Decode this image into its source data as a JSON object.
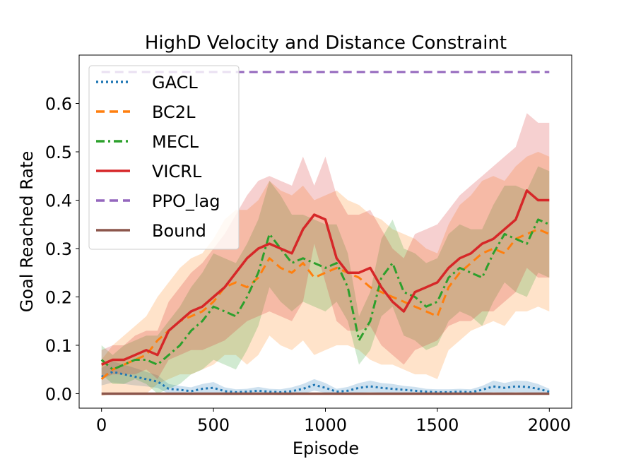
{
  "chart_data": {
    "type": "line",
    "title": "HighD Velocity and Distance Constraint",
    "xlabel": "Episode",
    "ylabel": "Goal Reached Rate",
    "xlim": [
      -100,
      2100
    ],
    "ylim": [
      -0.03,
      0.7
    ],
    "xticks": [
      0,
      500,
      1000,
      1500,
      2000
    ],
    "xtick_labels": [
      "0",
      "500",
      "1000",
      "1500",
      "2000"
    ],
    "yticks": [
      0.0,
      0.1,
      0.2,
      0.3,
      0.4,
      0.5,
      0.6
    ],
    "ytick_labels": [
      "0.0",
      "0.1",
      "0.2",
      "0.3",
      "0.4",
      "0.5",
      "0.6"
    ],
    "grid": false,
    "legend_position": "top-left",
    "series": [
      {
        "name": "GACL",
        "color": "#1f77b4",
        "style": "dotted",
        "x": [
          0,
          50,
          100,
          150,
          200,
          250,
          300,
          350,
          400,
          450,
          500,
          550,
          600,
          650,
          700,
          750,
          800,
          850,
          900,
          950,
          1000,
          1050,
          1100,
          1150,
          1200,
          1250,
          1300,
          1350,
          1400,
          1450,
          1500,
          1550,
          1600,
          1650,
          1700,
          1750,
          1800,
          1850,
          1900,
          1950,
          2000
        ],
        "y": [
          0.035,
          0.045,
          0.04,
          0.035,
          0.03,
          0.025,
          0.01,
          0.008,
          0.005,
          0.01,
          0.012,
          0.005,
          0.003,
          0.004,
          0.006,
          0.004,
          0.003,
          0.005,
          0.01,
          0.018,
          0.012,
          0.004,
          0.006,
          0.012,
          0.015,
          0.012,
          0.01,
          0.008,
          0.006,
          0.004,
          0.003,
          0.003,
          0.004,
          0.003,
          0.008,
          0.015,
          0.012,
          0.015,
          0.014,
          0.01,
          0.004
        ],
        "band": [
          0.018,
          0.022,
          0.02,
          0.018,
          0.015,
          0.013,
          0.01,
          0.008,
          0.008,
          0.01,
          0.012,
          0.008,
          0.006,
          0.006,
          0.008,
          0.006,
          0.006,
          0.008,
          0.01,
          0.012,
          0.01,
          0.006,
          0.008,
          0.01,
          0.012,
          0.01,
          0.01,
          0.008,
          0.008,
          0.006,
          0.006,
          0.006,
          0.006,
          0.006,
          0.008,
          0.012,
          0.01,
          0.012,
          0.012,
          0.01,
          0.006
        ]
      },
      {
        "name": "BC2L",
        "color": "#ff7f0e",
        "style": "dashed",
        "x": [
          0,
          50,
          100,
          150,
          200,
          250,
          300,
          350,
          400,
          450,
          500,
          550,
          600,
          650,
          700,
          750,
          800,
          850,
          900,
          950,
          1000,
          1050,
          1100,
          1150,
          1200,
          1250,
          1300,
          1350,
          1400,
          1450,
          1500,
          1550,
          1600,
          1650,
          1700,
          1750,
          1800,
          1850,
          1900,
          1950,
          2000
        ],
        "y": [
          0.03,
          0.05,
          0.06,
          0.07,
          0.08,
          0.11,
          0.13,
          0.15,
          0.16,
          0.17,
          0.19,
          0.22,
          0.23,
          0.22,
          0.24,
          0.28,
          0.26,
          0.25,
          0.27,
          0.24,
          0.25,
          0.26,
          0.25,
          0.24,
          0.22,
          0.21,
          0.2,
          0.19,
          0.18,
          0.17,
          0.16,
          0.22,
          0.25,
          0.27,
          0.29,
          0.3,
          0.29,
          0.32,
          0.33,
          0.34,
          0.33
        ],
        "band": [
          0.04,
          0.05,
          0.06,
          0.07,
          0.08,
          0.09,
          0.1,
          0.11,
          0.12,
          0.12,
          0.13,
          0.14,
          0.15,
          0.16,
          0.16,
          0.16,
          0.16,
          0.16,
          0.16,
          0.16,
          0.16,
          0.16,
          0.15,
          0.15,
          0.15,
          0.15,
          0.14,
          0.14,
          0.14,
          0.13,
          0.13,
          0.13,
          0.14,
          0.14,
          0.15,
          0.15,
          0.15,
          0.15,
          0.16,
          0.16,
          0.16
        ]
      },
      {
        "name": "MECL",
        "color": "#2ca02c",
        "style": "dashdot",
        "x": [
          0,
          50,
          100,
          150,
          200,
          250,
          300,
          350,
          400,
          450,
          500,
          550,
          600,
          650,
          700,
          750,
          800,
          850,
          900,
          950,
          1000,
          1050,
          1100,
          1150,
          1200,
          1250,
          1300,
          1350,
          1400,
          1450,
          1500,
          1550,
          1600,
          1650,
          1700,
          1750,
          1800,
          1850,
          1900,
          1950,
          2000
        ],
        "y": [
          0.07,
          0.05,
          0.06,
          0.07,
          0.07,
          0.06,
          0.08,
          0.1,
          0.13,
          0.15,
          0.18,
          0.17,
          0.16,
          0.2,
          0.25,
          0.33,
          0.3,
          0.27,
          0.28,
          0.27,
          0.26,
          0.27,
          0.22,
          0.11,
          0.15,
          0.24,
          0.27,
          0.21,
          0.2,
          0.18,
          0.19,
          0.24,
          0.26,
          0.25,
          0.24,
          0.29,
          0.33,
          0.32,
          0.31,
          0.36,
          0.35
        ],
        "band": [
          0.03,
          0.03,
          0.04,
          0.04,
          0.05,
          0.06,
          0.07,
          0.08,
          0.09,
          0.1,
          0.11,
          0.11,
          0.11,
          0.11,
          0.11,
          0.11,
          0.11,
          0.1,
          0.09,
          0.09,
          0.09,
          0.08,
          0.07,
          0.05,
          0.06,
          0.08,
          0.09,
          0.09,
          0.09,
          0.09,
          0.09,
          0.09,
          0.09,
          0.09,
          0.1,
          0.1,
          0.1,
          0.11,
          0.11,
          0.11,
          0.11
        ]
      },
      {
        "name": "VICRL",
        "color": "#d62728",
        "style": "solid",
        "x": [
          0,
          50,
          100,
          150,
          200,
          250,
          300,
          350,
          400,
          450,
          500,
          550,
          600,
          650,
          700,
          750,
          800,
          850,
          900,
          950,
          1000,
          1050,
          1100,
          1150,
          1200,
          1250,
          1300,
          1350,
          1400,
          1450,
          1500,
          1550,
          1600,
          1650,
          1700,
          1750,
          1800,
          1850,
          1900,
          1950,
          2000
        ],
        "y": [
          0.06,
          0.07,
          0.07,
          0.08,
          0.09,
          0.08,
          0.13,
          0.15,
          0.17,
          0.18,
          0.2,
          0.22,
          0.25,
          0.28,
          0.3,
          0.31,
          0.3,
          0.29,
          0.34,
          0.37,
          0.36,
          0.28,
          0.25,
          0.25,
          0.26,
          0.22,
          0.19,
          0.17,
          0.21,
          0.22,
          0.23,
          0.26,
          0.28,
          0.29,
          0.31,
          0.32,
          0.34,
          0.36,
          0.42,
          0.4,
          0.4
        ],
        "band": [
          0.03,
          0.03,
          0.03,
          0.04,
          0.04,
          0.05,
          0.06,
          0.07,
          0.08,
          0.09,
          0.1,
          0.11,
          0.12,
          0.13,
          0.14,
          0.14,
          0.14,
          0.14,
          0.15,
          0.06,
          0.13,
          0.13,
          0.12,
          0.12,
          0.12,
          0.12,
          0.11,
          0.11,
          0.12,
          0.12,
          0.12,
          0.12,
          0.13,
          0.14,
          0.14,
          0.15,
          0.15,
          0.15,
          0.16,
          0.16,
          0.16
        ]
      },
      {
        "name": "PPO_lag",
        "color": "#9467bd",
        "style": "dashed",
        "x": [
          0,
          2000
        ],
        "y": [
          0.665,
          0.665
        ],
        "band": [
          0,
          0
        ]
      },
      {
        "name": "Bound",
        "color": "#8c564b",
        "style": "solid",
        "x": [
          0,
          2000
        ],
        "y": [
          0.0,
          0.0
        ],
        "band": [
          0,
          0
        ]
      }
    ]
  }
}
